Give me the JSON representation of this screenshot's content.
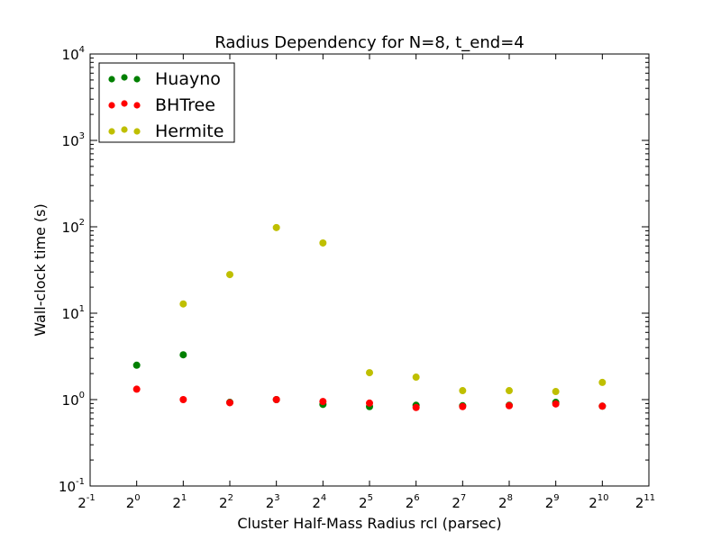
{
  "chart_data": {
    "type": "scatter",
    "title": "Radius Dependency for N=8, t_end=4",
    "xlabel": "Cluster Half-Mass Radius rcl (parsec)",
    "ylabel": "Wall-clock time (s)",
    "x_scale": "log2",
    "y_scale": "log10",
    "xlim": [
      0.5,
      2048
    ],
    "ylim": [
      0.1,
      10000
    ],
    "x_ticks": [
      {
        "base": "2",
        "exp": "-1"
      },
      {
        "base": "2",
        "exp": "0"
      },
      {
        "base": "2",
        "exp": "1"
      },
      {
        "base": "2",
        "exp": "2"
      },
      {
        "base": "2",
        "exp": "3"
      },
      {
        "base": "2",
        "exp": "4"
      },
      {
        "base": "2",
        "exp": "5"
      },
      {
        "base": "2",
        "exp": "6"
      },
      {
        "base": "2",
        "exp": "7"
      },
      {
        "base": "2",
        "exp": "8"
      },
      {
        "base": "2",
        "exp": "9"
      },
      {
        "base": "2",
        "exp": "10"
      },
      {
        "base": "2",
        "exp": "11"
      }
    ],
    "y_ticks": [
      {
        "base": "10",
        "exp": "-1"
      },
      {
        "base": "10",
        "exp": "0"
      },
      {
        "base": "10",
        "exp": "1"
      },
      {
        "base": "10",
        "exp": "2"
      },
      {
        "base": "10",
        "exp": "3"
      },
      {
        "base": "10",
        "exp": "4"
      }
    ],
    "grid": false,
    "legend_position": "top-left",
    "x": [
      1,
      2,
      4,
      8,
      16,
      32,
      64,
      128,
      256,
      512,
      1024
    ],
    "series": [
      {
        "name": "Huayno",
        "color": "#008000",
        "values": [
          2.5,
          3.3,
          0.93,
          1.0,
          0.88,
          0.83,
          0.86,
          0.85,
          0.86,
          0.93,
          0.84
        ]
      },
      {
        "name": "BHTree",
        "color": "#ff0000",
        "values": [
          1.32,
          1.0,
          0.92,
          1.0,
          0.95,
          0.91,
          0.81,
          0.83,
          0.85,
          0.89,
          0.84
        ]
      },
      {
        "name": "Hermite",
        "color": "#bfbf00",
        "values": [
          null,
          12.8,
          28.0,
          98.0,
          65.0,
          2.05,
          1.82,
          1.27,
          1.27,
          1.24,
          1.58
        ]
      }
    ]
  }
}
